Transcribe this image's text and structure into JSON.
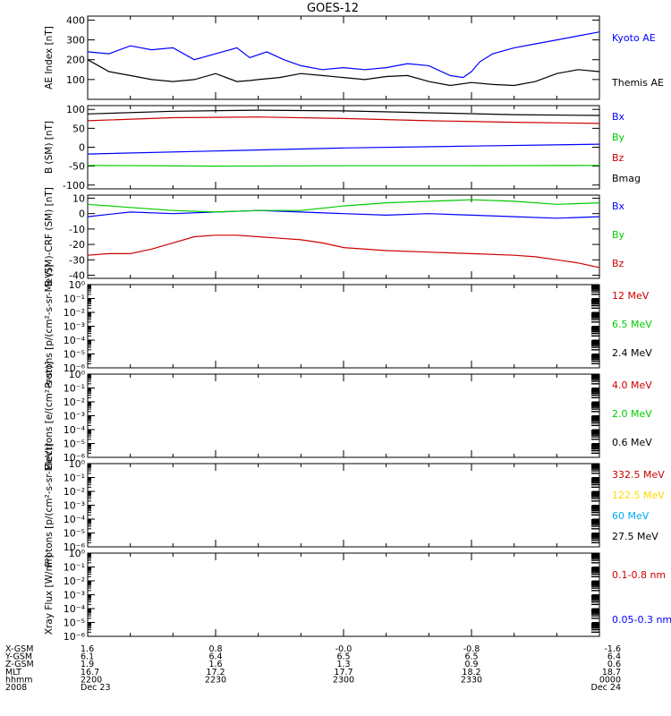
{
  "title": "GOES-12",
  "colors": {
    "black": "#000000",
    "blue": "#0000ff",
    "green": "#00cc00",
    "red": "#cc0000",
    "yellow": "#ffdd00",
    "cyan": "#00aaee"
  },
  "chart_data": [
    {
      "type": "line",
      "ylabel": "AE Index [nT]",
      "ylim": [
        0,
        420
      ],
      "yticks": [
        "100",
        "200",
        "300",
        "400"
      ],
      "ytick_values": [
        100,
        200,
        300,
        400
      ],
      "x_range": [
        0,
        120
      ],
      "series": [
        {
          "name": "Kyoto AE",
          "color": "#0000ff",
          "x": [
            0,
            5,
            10,
            15,
            20,
            25,
            30,
            35,
            38,
            42,
            46,
            50,
            55,
            60,
            65,
            70,
            75,
            80,
            85,
            88,
            90,
            92,
            95,
            100,
            105,
            110,
            115,
            120
          ],
          "y": [
            240,
            230,
            270,
            250,
            260,
            200,
            230,
            260,
            210,
            240,
            200,
            170,
            150,
            160,
            150,
            160,
            180,
            170,
            120,
            110,
            140,
            190,
            230,
            260,
            280,
            300,
            320,
            340
          ]
        },
        {
          "name": "Themis AE",
          "color": "#000000",
          "x": [
            0,
            5,
            10,
            15,
            20,
            25,
            30,
            35,
            38,
            40,
            45,
            50,
            55,
            60,
            65,
            70,
            75,
            80,
            85,
            90,
            95,
            100,
            105,
            110,
            115,
            120
          ],
          "y": [
            200,
            140,
            120,
            100,
            90,
            100,
            130,
            90,
            95,
            100,
            110,
            130,
            120,
            110,
            100,
            115,
            120,
            90,
            70,
            85,
            75,
            70,
            90,
            130,
            150,
            140
          ]
        }
      ]
    },
    {
      "type": "line",
      "ylabel": "B (SM) [nT]",
      "ylim": [
        -110,
        110
      ],
      "yticks": [
        "-100",
        "-50",
        "0",
        "50",
        "100"
      ],
      "ytick_values": [
        -100,
        -50,
        0,
        50,
        100
      ],
      "x_range": [
        0,
        120
      ],
      "series": [
        {
          "name": "Bx",
          "color": "#0000ff",
          "x": [
            0,
            30,
            60,
            90,
            120
          ],
          "y": [
            -18,
            -10,
            -2,
            3,
            8
          ]
        },
        {
          "name": "By",
          "color": "#00cc00",
          "x": [
            0,
            30,
            60,
            90,
            120
          ],
          "y": [
            -48,
            -50,
            -49,
            -49,
            -48
          ]
        },
        {
          "name": "Bz",
          "color": "#cc0000",
          "x": [
            0,
            20,
            40,
            60,
            80,
            100,
            120
          ],
          "y": [
            70,
            78,
            80,
            76,
            70,
            66,
            63
          ]
        },
        {
          "name": "Bmag",
          "color": "#000000",
          "x": [
            0,
            20,
            40,
            60,
            80,
            100,
            120
          ],
          "y": [
            88,
            95,
            98,
            96,
            91,
            86,
            84
          ]
        }
      ]
    },
    {
      "type": "line",
      "ylabel": "B (SM)-CRF (SM) [nT]",
      "ylim": [
        -42,
        12
      ],
      "yticks": [
        "-40",
        "-30",
        "-20",
        "-10",
        "0",
        "10"
      ],
      "ytick_values": [
        -40,
        -30,
        -20,
        -10,
        0,
        10
      ],
      "x_range": [
        0,
        120
      ],
      "series": [
        {
          "name": "Bx",
          "color": "#0000ff",
          "x": [
            0,
            10,
            20,
            30,
            40,
            50,
            60,
            70,
            80,
            90,
            100,
            110,
            120
          ],
          "y": [
            -2,
            1,
            0,
            1,
            2,
            1,
            0,
            -1,
            0,
            -1,
            -2,
            -3,
            -2
          ]
        },
        {
          "name": "By",
          "color": "#00cc00",
          "x": [
            0,
            10,
            20,
            30,
            40,
            50,
            60,
            70,
            80,
            90,
            100,
            110,
            120
          ],
          "y": [
            6,
            4,
            2,
            1,
            2,
            2,
            5,
            7,
            8,
            9,
            8,
            6,
            7
          ]
        },
        {
          "name": "Bz",
          "color": "#cc0000",
          "x": [
            0,
            5,
            10,
            15,
            20,
            25,
            30,
            35,
            40,
            45,
            50,
            55,
            60,
            70,
            80,
            90,
            100,
            105,
            110,
            115,
            120
          ],
          "y": [
            -27,
            -26,
            -26,
            -23,
            -19,
            -15,
            -14,
            -14,
            -15,
            -16,
            -17,
            -19,
            -22,
            -24,
            -25,
            -26,
            -27,
            -28,
            -30,
            -32,
            -35
          ]
        }
      ]
    },
    {
      "type": "line",
      "ylabel": "Protons [p/(cm²-s-sr-MeV)]",
      "ylim": [
        -6,
        0
      ],
      "log": true,
      "yticks": [
        "10⁰",
        "10⁻¹",
        "10⁻²",
        "10⁻³",
        "10⁻⁴",
        "10⁻⁵",
        "10⁻⁶"
      ],
      "ytick_values": [
        0,
        -1,
        -2,
        -3,
        -4,
        -5,
        -6
      ],
      "series": [
        {
          "name": "12 MeV",
          "color": "#cc0000"
        },
        {
          "name": "6.5 MeV",
          "color": "#00cc00"
        },
        {
          "name": "2.4 MeV",
          "color": "#000000"
        }
      ]
    },
    {
      "type": "line",
      "ylabel": "Electrons [e/(cm²-s-sr)]",
      "ylim": [
        -6,
        0
      ],
      "log": true,
      "yticks": [
        "10⁰",
        "10⁻¹",
        "10⁻²",
        "10⁻³",
        "10⁻⁴",
        "10⁻⁵",
        "10⁻⁶"
      ],
      "ytick_values": [
        0,
        -1,
        -2,
        -3,
        -4,
        -5,
        -6
      ],
      "series": [
        {
          "name": "4.0 MeV",
          "color": "#cc0000"
        },
        {
          "name": "2.0 MeV",
          "color": "#00cc00"
        },
        {
          "name": "0.6 MeV",
          "color": "#000000"
        }
      ]
    },
    {
      "type": "line",
      "ylabel": "Protons [p/(cm²-s-sr-MeV)]",
      "ylim": [
        -6,
        0
      ],
      "log": true,
      "yticks": [
        "10⁰",
        "10⁻¹",
        "10⁻²",
        "10⁻³",
        "10⁻⁴",
        "10⁻⁵",
        "10⁻⁶"
      ],
      "ytick_values": [
        0,
        -1,
        -2,
        -3,
        -4,
        -5,
        -6
      ],
      "series": [
        {
          "name": "332.5 MeV",
          "color": "#cc0000"
        },
        {
          "name": "122.5 MeV",
          "color": "#ffdd00"
        },
        {
          "name": "60 MeV",
          "color": "#00aaee"
        },
        {
          "name": "27.5 MeV",
          "color": "#000000"
        }
      ]
    },
    {
      "type": "line",
      "ylabel": "Xray Flux [W/m²]",
      "ylim": [
        -6,
        0
      ],
      "log": true,
      "yticks": [
        "10⁰",
        "10⁻¹",
        "10⁻²",
        "10⁻³",
        "10⁻⁴",
        "10⁻⁵",
        "10⁻⁶"
      ],
      "ytick_values": [
        0,
        -1,
        -2,
        -3,
        -4,
        -5,
        -6
      ],
      "series": [
        {
          "name": "0.1-0.8 nm",
          "color": "#cc0000"
        },
        {
          "name": "0.05-0.3 nm",
          "color": "#0000ff"
        }
      ]
    }
  ],
  "x_axis_table": {
    "row_labels": [
      "X-GSM",
      "Y-GSM",
      "Z-GSM",
      "MLT",
      "hhmm",
      "2008"
    ],
    "ticks": [
      {
        "x": 0,
        "values": [
          "1.6",
          "6.1",
          "1.9",
          "16.7",
          "2200",
          "Dec 23"
        ]
      },
      {
        "x": 30,
        "values": [
          "0.8",
          "6.4",
          "1.6",
          "17.2",
          "2230",
          ""
        ]
      },
      {
        "x": 60,
        "values": [
          "-0.0",
          "6.5",
          "1.3",
          "17.7",
          "2300",
          ""
        ]
      },
      {
        "x": 90,
        "values": [
          "-0.8",
          "6.5",
          "0.9",
          "18.2",
          "2330",
          ""
        ]
      },
      {
        "x": 120,
        "values": [
          "-1.6",
          "6.4",
          "0.6",
          "18.7",
          "0000",
          "Dec 24"
        ]
      }
    ]
  }
}
